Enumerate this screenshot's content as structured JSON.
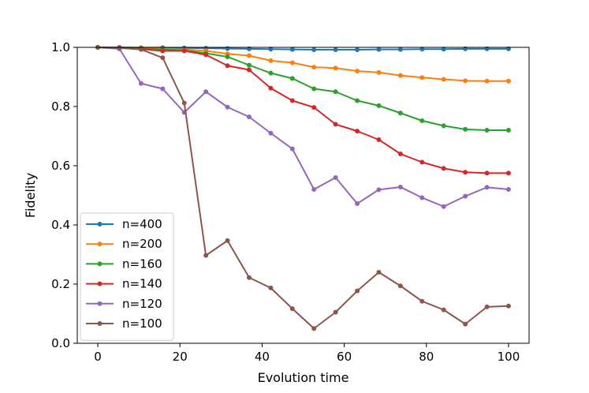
{
  "chart_data": {
    "type": "line",
    "title": "",
    "xlabel": "Evolution time",
    "ylabel": "Fidelity",
    "xlim": [
      -5,
      105
    ],
    "ylim": [
      0.0,
      1.0
    ],
    "xticks": [
      0,
      20,
      40,
      60,
      80,
      100
    ],
    "yticks": [
      0.0,
      0.2,
      0.4,
      0.6,
      0.8,
      1.0
    ],
    "xtick_labels": [
      "0",
      "20",
      "40",
      "60",
      "80",
      "100"
    ],
    "ytick_labels": [
      "0.0",
      "0.2",
      "0.4",
      "0.6",
      "0.8",
      "1.0"
    ],
    "grid": false,
    "legend_position": "lower-left",
    "x": [
      0,
      5.26,
      10.53,
      15.79,
      21.05,
      26.32,
      31.58,
      36.84,
      42.11,
      47.37,
      52.63,
      57.89,
      63.16,
      68.42,
      73.68,
      78.95,
      84.21,
      89.47,
      94.74,
      100
    ],
    "series": [
      {
        "name": "n=400",
        "color": "#1f77b4",
        "values": [
          1.0,
          1.0,
          0.999,
          0.999,
          0.998,
          0.997,
          0.996,
          0.995,
          0.994,
          0.993,
          0.992,
          0.992,
          0.992,
          0.993,
          0.993,
          0.994,
          0.994,
          0.995,
          0.995,
          0.995
        ]
      },
      {
        "name": "n=200",
        "color": "#ff7f0e",
        "values": [
          1.0,
          0.999,
          0.998,
          0.996,
          0.993,
          0.988,
          0.978,
          0.972,
          0.955,
          0.948,
          0.933,
          0.93,
          0.92,
          0.915,
          0.905,
          0.898,
          0.892,
          0.887,
          0.886,
          0.886
        ]
      },
      {
        "name": "n=160",
        "color": "#2ca02c",
        "values": [
          1.0,
          0.999,
          0.996,
          0.993,
          0.99,
          0.98,
          0.968,
          0.94,
          0.913,
          0.895,
          0.86,
          0.85,
          0.82,
          0.803,
          0.778,
          0.752,
          0.735,
          0.723,
          0.72,
          0.72
        ]
      },
      {
        "name": "n=140",
        "color": "#d62728",
        "values": [
          1.0,
          0.998,
          0.994,
          0.988,
          0.988,
          0.975,
          0.938,
          0.924,
          0.862,
          0.82,
          0.797,
          0.74,
          0.717,
          0.688,
          0.64,
          0.612,
          0.591,
          0.578,
          0.575,
          0.575
        ]
      },
      {
        "name": "n=120",
        "color": "#9467bd",
        "values": [
          1.0,
          0.995,
          0.878,
          0.86,
          0.78,
          0.85,
          0.798,
          0.765,
          0.71,
          0.657,
          0.52,
          0.56,
          0.472,
          0.519,
          0.528,
          0.492,
          0.462,
          0.497,
          0.527,
          0.52
        ]
      },
      {
        "name": "n=100",
        "color": "#8c564b",
        "values": [
          1.0,
          0.998,
          0.993,
          0.965,
          0.812,
          0.297,
          0.347,
          0.222,
          0.187,
          0.117,
          0.05,
          0.105,
          0.177,
          0.24,
          0.194,
          0.142,
          0.113,
          0.065,
          0.123,
          0.126
        ]
      }
    ]
  }
}
